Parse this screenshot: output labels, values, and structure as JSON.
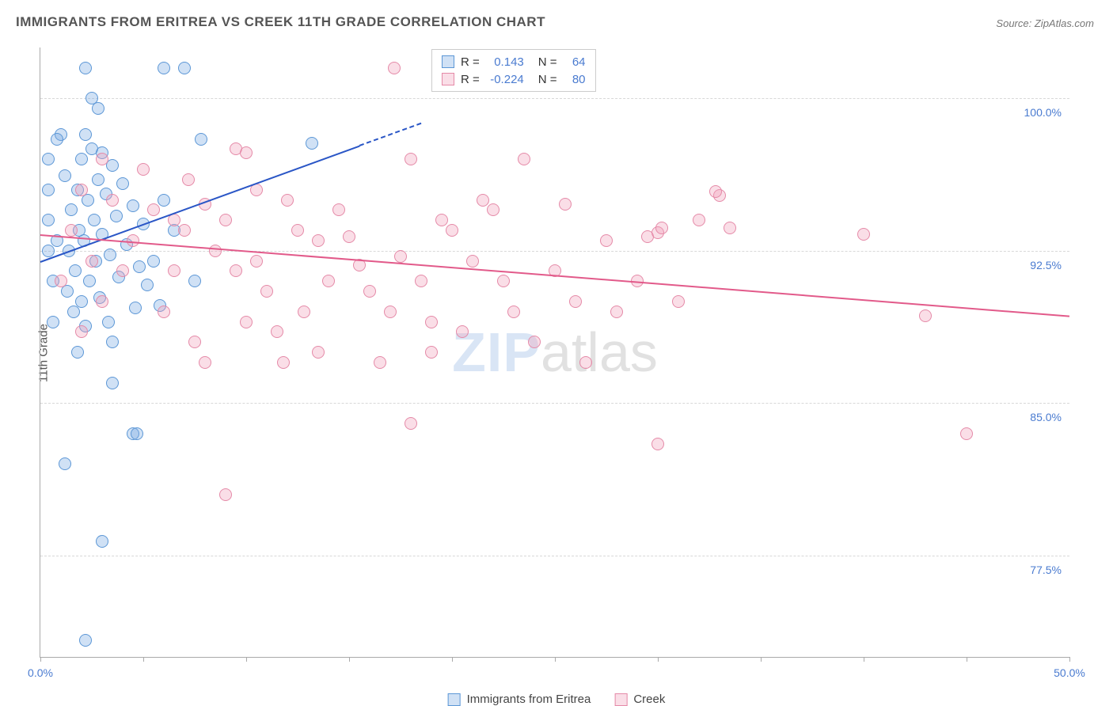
{
  "title": "IMMIGRANTS FROM ERITREA VS CREEK 11TH GRADE CORRELATION CHART",
  "source_label": "Source:",
  "source_value": "ZipAtlas.com",
  "ylabel": "11th Grade",
  "watermark": {
    "part1": "ZIP",
    "part2": "atlas"
  },
  "chart": {
    "type": "scatter",
    "background_color": "#ffffff",
    "grid_color": "#d8d8d8",
    "axis_color": "#aaaaaa",
    "tick_label_color": "#4a7bd0",
    "xlim": [
      0,
      50
    ],
    "ylim": [
      72.5,
      102.5
    ],
    "y_gridlines": [
      77.5,
      85.0,
      92.5,
      100.0
    ],
    "y_tick_labels": [
      "77.5%",
      "85.0%",
      "92.5%",
      "100.0%"
    ],
    "x_ticks": [
      0,
      5,
      10,
      15,
      20,
      25,
      30,
      35,
      40,
      45,
      50
    ],
    "x_tick_labels": {
      "0": "0.0%",
      "50": "50.0%"
    },
    "marker_radius": 8,
    "series": [
      {
        "name": "Immigrants from Eritrea",
        "fill": "rgba(120,170,225,0.35)",
        "stroke": "#5c97d6",
        "trend_color": "#2a56c6",
        "R": "0.143",
        "N": "64",
        "trend": {
          "x1": 0,
          "y1": 92.0,
          "x2": 15.5,
          "y2": 97.7,
          "dash_to_x": 18.5,
          "dash_to_y": 98.8
        },
        "points": [
          [
            2.2,
            101.5
          ],
          [
            6.0,
            101.5
          ],
          [
            7.0,
            101.5
          ],
          [
            2.5,
            100.0
          ],
          [
            2.8,
            99.5
          ],
          [
            1.0,
            98.2
          ],
          [
            2.2,
            98.2
          ],
          [
            7.8,
            98.0
          ],
          [
            13.2,
            97.8
          ],
          [
            2.5,
            97.5
          ],
          [
            3.0,
            97.3
          ],
          [
            2.0,
            97.0
          ],
          [
            3.5,
            96.7
          ],
          [
            1.2,
            96.2
          ],
          [
            2.8,
            96.0
          ],
          [
            4.0,
            95.8
          ],
          [
            1.8,
            95.5
          ],
          [
            3.2,
            95.3
          ],
          [
            2.3,
            95.0
          ],
          [
            4.5,
            94.7
          ],
          [
            1.5,
            94.5
          ],
          [
            3.7,
            94.2
          ],
          [
            2.6,
            94.0
          ],
          [
            5.0,
            93.8
          ],
          [
            1.9,
            93.5
          ],
          [
            3.0,
            93.3
          ],
          [
            2.1,
            93.0
          ],
          [
            4.2,
            92.8
          ],
          [
            1.4,
            92.5
          ],
          [
            3.4,
            92.3
          ],
          [
            2.7,
            92.0
          ],
          [
            4.8,
            91.7
          ],
          [
            1.7,
            91.5
          ],
          [
            3.8,
            91.2
          ],
          [
            2.4,
            91.0
          ],
          [
            5.2,
            90.8
          ],
          [
            1.3,
            90.5
          ],
          [
            2.9,
            90.2
          ],
          [
            2.0,
            90.0
          ],
          [
            4.6,
            89.7
          ],
          [
            1.6,
            89.5
          ],
          [
            3.3,
            89.0
          ],
          [
            2.2,
            88.8
          ],
          [
            5.8,
            89.8
          ],
          [
            3.5,
            88.0
          ],
          [
            1.8,
            87.5
          ],
          [
            0.4,
            92.5
          ],
          [
            0.4,
            94.0
          ],
          [
            0.4,
            95.5
          ],
          [
            0.4,
            97.0
          ],
          [
            0.6,
            89.0
          ],
          [
            0.6,
            91.0
          ],
          [
            0.8,
            93.0
          ],
          [
            0.8,
            98.0
          ],
          [
            3.5,
            86.0
          ],
          [
            4.5,
            83.5
          ],
          [
            4.7,
            83.5
          ],
          [
            3.0,
            78.2
          ],
          [
            1.2,
            82.0
          ],
          [
            2.2,
            73.3
          ],
          [
            6.0,
            95.0
          ],
          [
            6.5,
            93.5
          ],
          [
            7.5,
            91.0
          ],
          [
            5.5,
            92.0
          ]
        ]
      },
      {
        "name": "Creek",
        "fill": "rgba(240,160,185,0.35)",
        "stroke": "#e58aa8",
        "trend_color": "#e25a8a",
        "R": "-0.224",
        "N": "80",
        "trend": {
          "x1": 0,
          "y1": 93.3,
          "x2": 50,
          "y2": 89.3
        },
        "points": [
          [
            17.2,
            101.5
          ],
          [
            9.5,
            97.5
          ],
          [
            10.0,
            97.3
          ],
          [
            8.0,
            94.8
          ],
          [
            12.0,
            95.0
          ],
          [
            18.0,
            97.0
          ],
          [
            19.5,
            94.0
          ],
          [
            23.5,
            97.0
          ],
          [
            25.5,
            94.8
          ],
          [
            29.5,
            93.2
          ],
          [
            30.0,
            93.4
          ],
          [
            30.2,
            93.6
          ],
          [
            32.0,
            94.0
          ],
          [
            33.0,
            95.2
          ],
          [
            32.8,
            95.4
          ],
          [
            33.5,
            93.6
          ],
          [
            40.0,
            93.3
          ],
          [
            43.0,
            89.3
          ],
          [
            6.5,
            94.0
          ],
          [
            7.0,
            93.5
          ],
          [
            8.5,
            92.5
          ],
          [
            10.5,
            92.0
          ],
          [
            11.0,
            90.5
          ],
          [
            13.5,
            93.0
          ],
          [
            14.0,
            91.0
          ],
          [
            15.5,
            91.8
          ],
          [
            16.0,
            90.5
          ],
          [
            17.5,
            92.2
          ],
          [
            18.0,
            84.0
          ],
          [
            19.0,
            89.0
          ],
          [
            20.5,
            88.5
          ],
          [
            21.0,
            92.0
          ],
          [
            22.5,
            91.0
          ],
          [
            24.0,
            88.0
          ],
          [
            26.0,
            90.0
          ],
          [
            27.5,
            93.0
          ],
          [
            28.0,
            89.5
          ],
          [
            30.0,
            83.0
          ],
          [
            45.0,
            83.5
          ],
          [
            9.0,
            80.5
          ],
          [
            13.5,
            87.5
          ],
          [
            5.0,
            96.5
          ],
          [
            5.5,
            94.5
          ],
          [
            4.0,
            91.5
          ],
          [
            3.0,
            90.0
          ],
          [
            2.0,
            88.5
          ],
          [
            6.0,
            89.5
          ],
          [
            7.5,
            88.0
          ],
          [
            8.0,
            87.0
          ],
          [
            9.5,
            91.5
          ],
          [
            10.0,
            89.0
          ],
          [
            11.5,
            88.5
          ],
          [
            12.5,
            93.5
          ],
          [
            14.5,
            94.5
          ],
          [
            15.0,
            93.2
          ],
          [
            16.5,
            87.0
          ],
          [
            19.0,
            87.5
          ],
          [
            20.0,
            93.5
          ],
          [
            21.5,
            95.0
          ],
          [
            23.0,
            89.5
          ],
          [
            25.0,
            91.5
          ],
          [
            26.5,
            87.0
          ],
          [
            29.0,
            91.0
          ],
          [
            31.0,
            90.0
          ],
          [
            9.0,
            94.0
          ],
          [
            10.5,
            95.5
          ],
          [
            3.5,
            95.0
          ],
          [
            4.5,
            93.0
          ],
          [
            1.5,
            93.5
          ],
          [
            2.5,
            92.0
          ],
          [
            17.0,
            89.5
          ],
          [
            18.5,
            91.0
          ],
          [
            6.5,
            91.5
          ],
          [
            7.2,
            96.0
          ],
          [
            11.8,
            87.0
          ],
          [
            12.8,
            89.5
          ],
          [
            22.0,
            94.5
          ],
          [
            1.0,
            91.0
          ],
          [
            2.0,
            95.5
          ],
          [
            3.0,
            97.0
          ]
        ]
      }
    ]
  },
  "legend_rn": {
    "r_label": "R =",
    "n_label": "N ="
  },
  "bottom_legend": {
    "items": [
      "Immigrants from Eritrea",
      "Creek"
    ]
  }
}
